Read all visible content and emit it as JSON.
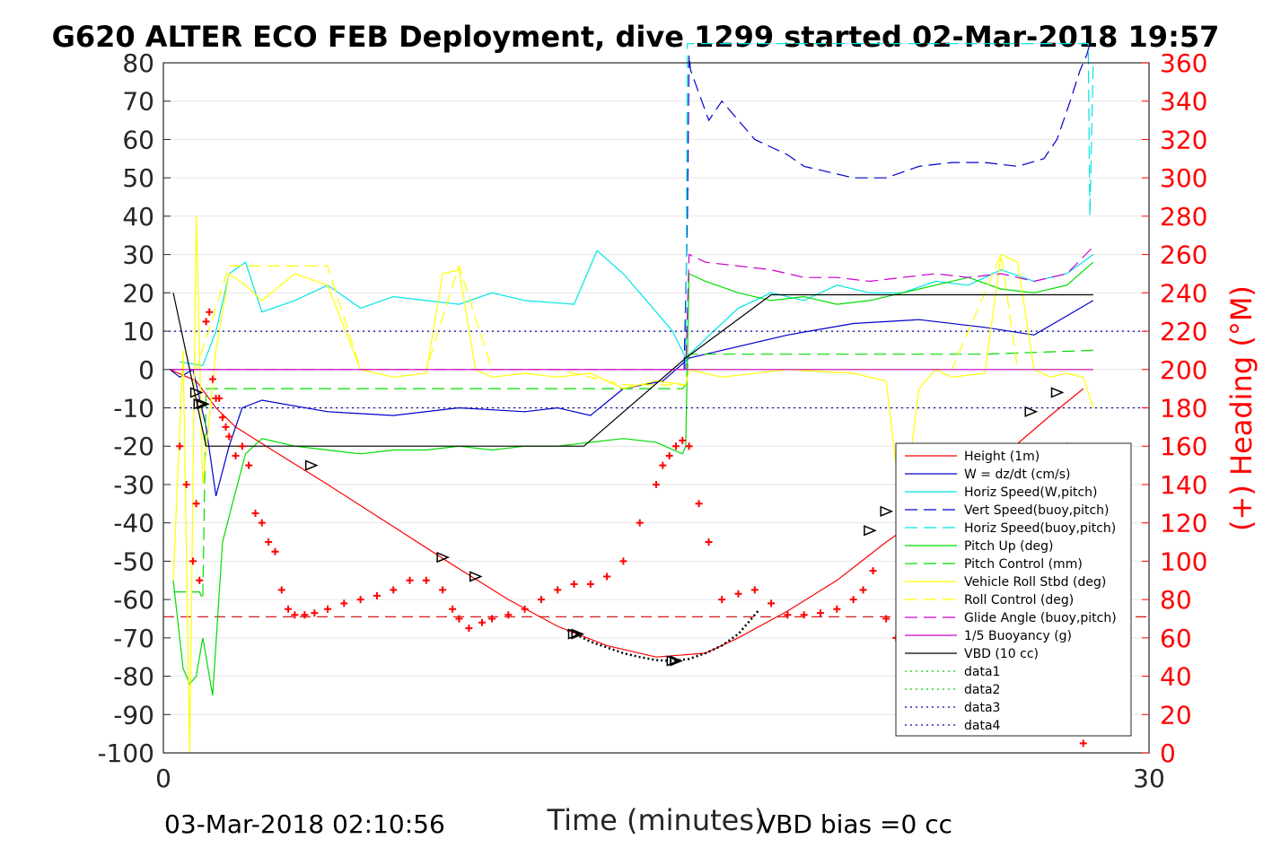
{
  "chart_data": {
    "type": "line",
    "title": "G620 ALTER ECO FEB Deployment, dive 1299 started 02-Mar-2018 19:57",
    "xlabel": "Time (minutes)",
    "ylabel_right": "(+) Heading (°M)",
    "footer_left": "03-Mar-2018 02:10:56",
    "footer_right": "VBD bias =0 cc",
    "xlim": [
      0,
      30
    ],
    "ylim": [
      -100,
      80
    ],
    "y2lim": [
      0,
      360
    ],
    "x_ticks": [
      "0",
      "30"
    ],
    "y_ticks": [
      "80",
      "70",
      "60",
      "50",
      "40",
      "30",
      "20",
      "10",
      "0",
      "-10",
      "-20",
      "-30",
      "-40",
      "-50",
      "-60",
      "-70",
      "-80",
      "-90",
      "-100"
    ],
    "y2_ticks": [
      "360",
      "340",
      "320",
      "300",
      "280",
      "260",
      "240",
      "220",
      "200",
      "180",
      "160",
      "140",
      "120",
      "100",
      "80",
      "60",
      "40",
      "20",
      "0"
    ],
    "legend_position": "lower-right",
    "grid": true,
    "series": [
      {
        "name": "Height (1m)",
        "color": "#ff0000",
        "style": "solid",
        "x": [
          0.2,
          1.0,
          1.6,
          2.2,
          3.5,
          5,
          7,
          9,
          10.5,
          12,
          13.5,
          15,
          16.5,
          17.5,
          19,
          20.5,
          22,
          24,
          25.5,
          27,
          28
        ],
        "y": [
          0,
          -3,
          -10,
          -15,
          -22,
          -30,
          -41,
          -52,
          -60,
          -67,
          -72,
          -75,
          -74,
          -70,
          -63,
          -55,
          -45,
          -33,
          -23,
          -12,
          -5
        ]
      },
      {
        "name": "W = dz/dt (cm/s)",
        "color": "#0000cc",
        "style": "solid",
        "x": [
          0.2,
          0.5,
          0.9,
          1.3,
          1.6,
          2.0,
          2.4,
          3,
          5,
          7,
          9,
          11,
          12,
          13,
          14,
          15.2,
          16,
          17,
          19,
          21,
          23,
          25,
          26.5,
          27.5,
          28.3
        ],
        "y": [
          0,
          -2,
          0,
          -15,
          -33,
          -20,
          -10,
          -8,
          -11,
          -12,
          -10,
          -11,
          -10,
          -12,
          -5,
          -3,
          3,
          5,
          9,
          12,
          13,
          11,
          9,
          14,
          18
        ]
      },
      {
        "name": "Horiz Speed(W,pitch)",
        "color": "#00e5e5",
        "style": "solid",
        "x": [
          0.5,
          1.2,
          1.6,
          2.0,
          2.5,
          3,
          4,
          5,
          6,
          7,
          8,
          9,
          10,
          11,
          12.5,
          13.2,
          14,
          15,
          15.5,
          15.9,
          16.5,
          17.5,
          18.5,
          19.5,
          20.5,
          21.5,
          22.5,
          23.5,
          24.5,
          25.5,
          26.5,
          27.5,
          28.3
        ],
        "y": [
          2,
          1,
          10,
          25,
          28,
          15,
          18,
          22,
          16,
          19,
          18,
          17,
          20,
          18,
          17,
          31,
          25,
          15,
          10,
          3,
          8,
          16,
          20,
          18,
          22,
          20,
          20,
          23,
          22,
          26,
          23,
          25,
          30
        ]
      },
      {
        "name": "Vert Speed(buoy,pitch)",
        "color": "#0000cc",
        "style": "dashed",
        "x": [
          15.85,
          15.95,
          16.0,
          16.05,
          16.6,
          17.0,
          17.5,
          18,
          18.5,
          19,
          19.5,
          20,
          21,
          22,
          23,
          24,
          25,
          26,
          26.8,
          27.2,
          27.6,
          27.9,
          28.1,
          28.2
        ],
        "y": [
          0,
          40,
          82,
          78,
          65,
          70,
          65,
          60,
          58,
          56,
          53,
          52,
          50,
          50,
          53,
          54,
          54,
          53,
          55,
          60,
          70,
          78,
          82,
          85
        ]
      },
      {
        "name": "Horiz Speed(buoy,pitch)",
        "color": "#00e5e5",
        "style": "dashed",
        "x": [
          15.9,
          15.95,
          16.0,
          28.15,
          28.2,
          28.3
        ],
        "y": [
          0,
          85,
          85,
          85,
          40,
          80
        ]
      },
      {
        "name": "Pitch Up (deg)",
        "color": "#00dd00",
        "style": "solid",
        "x": [
          0.3,
          0.6,
          0.8,
          1.0,
          1.2,
          1.5,
          1.8,
          2.1,
          2.5,
          3,
          4,
          5,
          6,
          7,
          8,
          9,
          10,
          11,
          12,
          13,
          14,
          15,
          15.8,
          15.9,
          16.0,
          16.5,
          17.5,
          18.5,
          19.5,
          20.5,
          21.5,
          22.5,
          23.5,
          24.5,
          25.5,
          26.5,
          27.5,
          28.3
        ],
        "y": [
          -55,
          -78,
          -82,
          -80,
          -70,
          -85,
          -45,
          -35,
          -22,
          -18,
          -20,
          -21,
          -22,
          -21,
          -21,
          -20,
          -21,
          -20,
          -20,
          -19,
          -18,
          -19,
          -22,
          -20,
          25,
          23,
          20,
          18,
          19,
          17,
          18,
          20,
          22,
          24,
          21,
          20,
          22,
          28
        ]
      },
      {
        "name": "Pitch Control (mm)",
        "color": "#00dd00",
        "style": "dashed",
        "x": [
          0.3,
          1.1,
          1.2,
          1.3,
          2.0,
          5,
          10,
          15.8,
          15.9,
          16,
          20,
          25,
          28.3
        ],
        "y": [
          -58,
          -58,
          -60,
          -5,
          -5,
          -5,
          -5,
          -5,
          -4,
          4,
          4,
          4,
          5
        ]
      },
      {
        "name": "Vehicle Roll Stbd (deg)",
        "color": "#ffff00",
        "style": "solid",
        "x": [
          0.3,
          0.6,
          0.8,
          1.0,
          1.2,
          1.6,
          2.0,
          2.5,
          3,
          4,
          5,
          6,
          7,
          8,
          8.5,
          9,
          9.5,
          10,
          11,
          12,
          13,
          14,
          15,
          15.9,
          16,
          17,
          19,
          21,
          22,
          22.3,
          22.6,
          23,
          23.5,
          24,
          25,
          25.5,
          26,
          26.5,
          27,
          27.5,
          28,
          28.3
        ],
        "y": [
          -55,
          5,
          -100,
          40,
          -30,
          5,
          25,
          22,
          18,
          25,
          22,
          0,
          -2,
          -1,
          25,
          26,
          0,
          -2,
          -1,
          -2,
          -1,
          -5,
          -3,
          -4,
          0,
          -2,
          0,
          -1,
          -3,
          -25,
          -32,
          -5,
          0,
          -2,
          -1,
          30,
          28,
          0,
          -2,
          -1,
          -2,
          -10
        ]
      },
      {
        "name": "Roll Control (deg)",
        "color": "#ffff00",
        "style": "dashed",
        "x": [
          0.3,
          1.0,
          2.0,
          3,
          4,
          5,
          6,
          8,
          9,
          10,
          12,
          14,
          15.9,
          16,
          18,
          20,
          22,
          24,
          25.5,
          26,
          28.3
        ],
        "y": [
          0,
          0,
          27,
          27,
          27,
          27,
          0,
          0,
          27,
          0,
          0,
          -4,
          -4,
          0,
          0,
          0,
          0,
          0,
          30,
          0,
          0
        ]
      },
      {
        "name": "Glide Angle (buoy,pitch)",
        "color": "#cc00cc",
        "style": "dashed",
        "x": [
          0.2,
          5,
          10,
          15.8,
          15.9,
          16,
          16.5,
          17.5,
          18.5,
          19.5,
          20.5,
          21.5,
          22.5,
          23.5,
          24.5,
          25.5,
          26.5,
          27.5,
          28.3
        ],
        "y": [
          0,
          0,
          0,
          0,
          0,
          30,
          28,
          27,
          26,
          24,
          24,
          23,
          24,
          25,
          24,
          25,
          23,
          25,
          32
        ]
      },
      {
        "name": "1/5 Buoyancy (g)",
        "color": "#cc00cc",
        "style": "solid",
        "x": [
          0.2,
          15.9,
          16.0,
          28.3
        ],
        "y": [
          0,
          0,
          0,
          0
        ]
      },
      {
        "name": "VBD (10 cc)",
        "color": "#000000",
        "style": "solid",
        "x": [
          0.3,
          1.3,
          12.8,
          15.9,
          18.5,
          28.3
        ],
        "y": [
          20,
          -20,
          -20,
          3,
          19.5,
          19.5
        ]
      },
      {
        "name": "data1",
        "color": "#00cc00",
        "style": "dotted",
        "x": [],
        "y": []
      },
      {
        "name": "data2",
        "color": "#00cc00",
        "style": "dotted",
        "x": [],
        "y": []
      },
      {
        "name": "data3",
        "color": "#000099",
        "style": "dotted",
        "x": [
          0,
          30
        ],
        "y": [
          10,
          10
        ]
      },
      {
        "name": "data4",
        "color": "#000099",
        "style": "dotted",
        "x": [
          0,
          30
        ],
        "y": [
          -10,
          -10
        ]
      }
    ],
    "reference_lines": [
      {
        "axis": "right",
        "value": 71,
        "color": "#cc0000",
        "style": "dashed"
      }
    ],
    "heading_points": {
      "axis": "right",
      "color": "#ff0000",
      "marker": "+",
      "x": [
        0.5,
        0.7,
        0.9,
        1.0,
        1.1,
        1.3,
        1.4,
        1.5,
        1.6,
        1.7,
        1.8,
        1.9,
        2.0,
        2.2,
        2.4,
        2.6,
        2.8,
        3.0,
        3.2,
        3.4,
        3.6,
        3.8,
        4.0,
        4.3,
        4.6,
        5.0,
        5.5,
        6,
        6.5,
        7,
        7.5,
        8,
        8.5,
        8.8,
        9.0,
        9.3,
        9.7,
        10,
        10.5,
        11,
        11.5,
        12,
        12.5,
        13,
        13.5,
        14,
        14.5,
        15,
        15.2,
        15.4,
        15.6,
        15.8,
        16.0,
        16.3,
        16.6,
        17,
        17.5,
        18,
        18.5,
        19,
        19.5,
        20,
        20.5,
        21,
        21.3,
        21.6,
        22,
        22.3,
        22.6,
        23,
        23.3,
        23.6,
        24,
        24.3,
        24.6,
        24.9,
        25.2,
        25.5,
        26,
        26.5,
        27,
        27.5,
        28.0
      ],
      "y": [
        160,
        140,
        100,
        130,
        90,
        225,
        230,
        195,
        185,
        185,
        175,
        170,
        165,
        155,
        160,
        150,
        125,
        120,
        110,
        105,
        85,
        75,
        72,
        72,
        73,
        75,
        78,
        80,
        82,
        85,
        90,
        90,
        85,
        75,
        70,
        65,
        68,
        70,
        72,
        75,
        80,
        85,
        88,
        88,
        92,
        100,
        120,
        140,
        150,
        155,
        160,
        163,
        160,
        130,
        110,
        80,
        83,
        85,
        78,
        72,
        72,
        73,
        75,
        80,
        85,
        95,
        70,
        60,
        48,
        42,
        38,
        35,
        40,
        50,
        65,
        85,
        100,
        110,
        125,
        140,
        150,
        160,
        5
      ]
    },
    "markers": {
      "series": "Height (1m)",
      "color": "#000000",
      "shape": "triangle",
      "x": [
        1.0,
        1.1,
        1.2,
        4.5,
        8.5,
        9.5,
        12.5,
        12.6,
        15.5,
        15.6,
        21.5,
        22.0,
        23.8,
        24.5,
        26.4,
        27.2
      ],
      "y": [
        -6,
        -9,
        -9,
        -25,
        -49,
        -54,
        -69,
        -69,
        -76,
        -76,
        -42,
        -37,
        -27,
        -21,
        -11,
        -6
      ]
    },
    "dotted_segment": {
      "color": "#000000",
      "x": [
        12.3,
        13,
        13.5,
        14,
        14.5,
        15,
        15.5,
        16,
        16.5,
        17,
        17.5,
        18.1
      ],
      "y": [
        -68,
        -71,
        -72.5,
        -74,
        -75,
        -75.8,
        -76,
        -75.5,
        -74,
        -72,
        -69,
        -63
      ]
    }
  }
}
